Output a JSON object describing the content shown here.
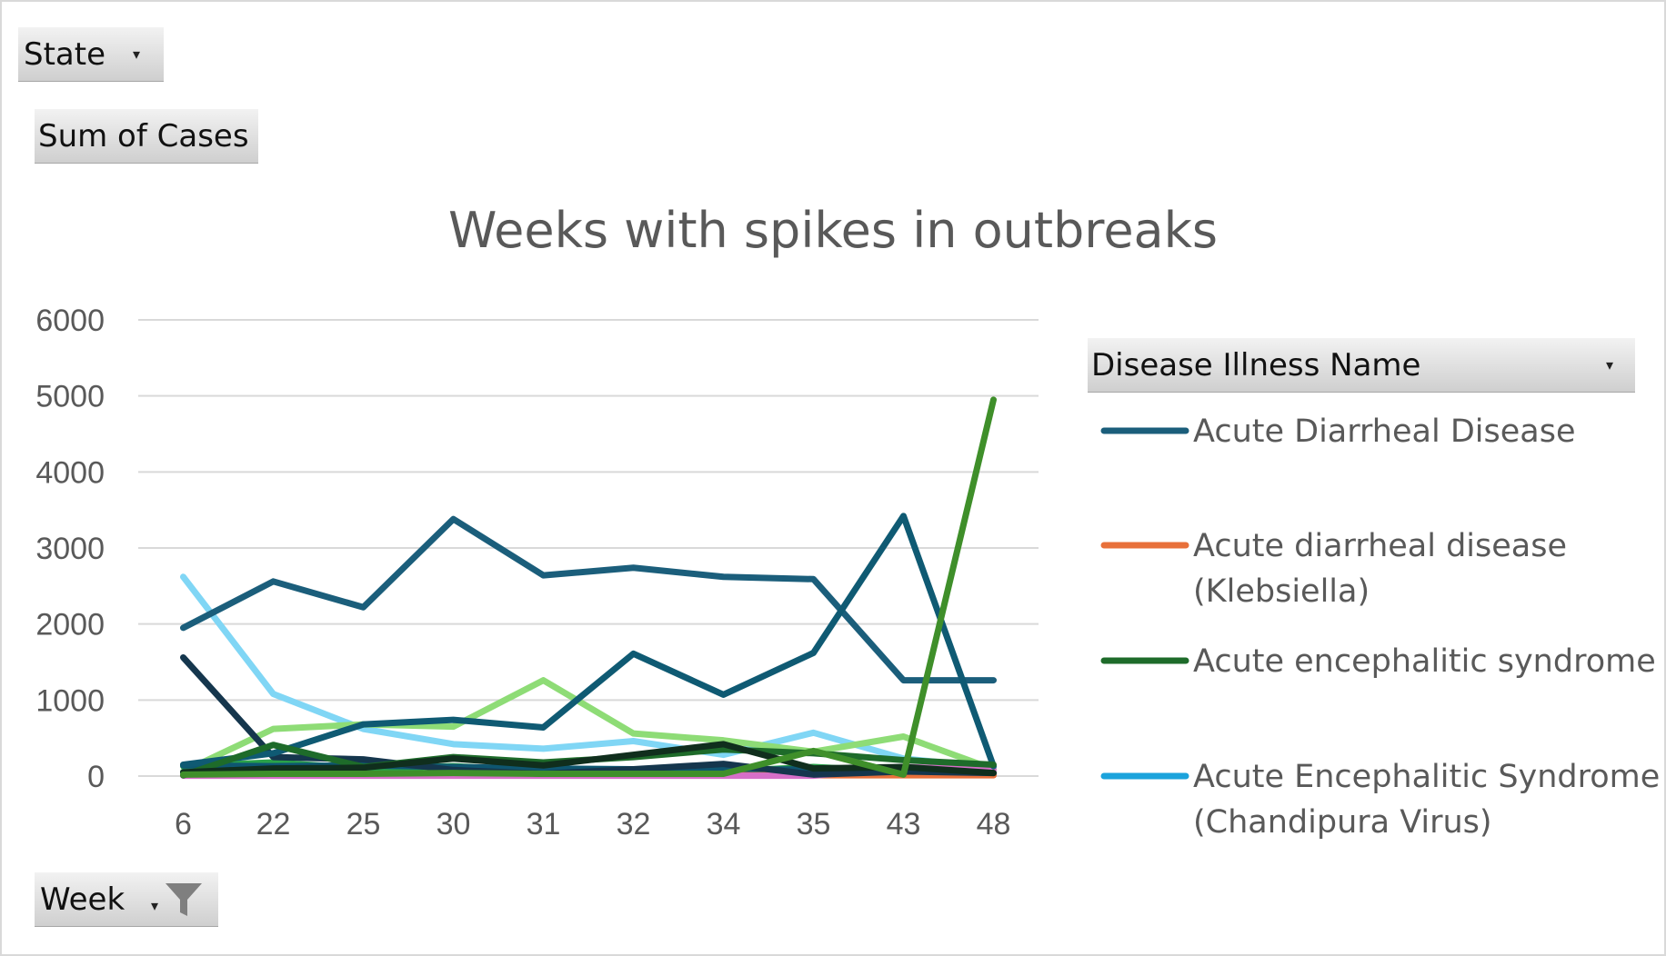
{
  "fields": {
    "state": "State",
    "values": "Sum of Cases",
    "axis": "Week",
    "legend": "Disease Illness Name"
  },
  "colors": {
    "acute_diarrheal": "#1b5e7b",
    "acute_diarrheal_klebsiella": "#e8703a",
    "acute_encephalitic": "#1e6b2a",
    "acute_encephalitic_chandipura": "#1ba3dc"
  },
  "chart_data": {
    "type": "line",
    "title": "Weeks with spikes in outbreaks",
    "xlabel": "",
    "ylabel": "",
    "categories": [
      "6",
      "22",
      "25",
      "30",
      "31",
      "32",
      "34",
      "35",
      "43",
      "48"
    ],
    "ylim": [
      0,
      6000
    ],
    "yticks": [
      0,
      1000,
      2000,
      3000,
      4000,
      5000,
      6000
    ],
    "grid": true,
    "legend_position": "right",
    "legend": [
      {
        "label": "Acute Diarrheal Disease",
        "color": "#1b5e7b"
      },
      {
        "label": "Acute diarrheal disease (Klebsiella)",
        "color": "#e8703a"
      },
      {
        "label": "Acute encephalitic syndrome",
        "color": "#1e6b2a"
      },
      {
        "label": "Acute Encephalitic Syndrome (Chandipura Virus)",
        "color": "#1ba3dc"
      }
    ],
    "series": [
      {
        "color": "#80d6f5",
        "values": [
          2620,
          1080,
          620,
          420,
          360,
          460,
          280,
          570,
          230,
          110
        ]
      },
      {
        "color": "#8edc76",
        "values": [
          60,
          620,
          680,
          650,
          1260,
          560,
          470,
          320,
          520,
          90
        ]
      },
      {
        "color": "#2aa24a",
        "values": [
          130,
          180,
          100,
          130,
          70,
          40,
          60,
          120,
          60,
          20
        ]
      },
      {
        "color": "#1ba3dc",
        "values": [
          50,
          40,
          30,
          20,
          20,
          20,
          20,
          20,
          40,
          20
        ]
      },
      {
        "color": "#0e5670",
        "values": [
          140,
          130,
          140,
          120,
          100,
          90,
          80,
          90,
          80,
          40
        ]
      },
      {
        "color": "#e8703a",
        "values": [
          10,
          10,
          10,
          10,
          10,
          10,
          10,
          10,
          10,
          10
        ]
      },
      {
        "color": "#d66fc8",
        "values": [
          5,
          5,
          5,
          5,
          5,
          5,
          5,
          5,
          120,
          80
        ]
      },
      {
        "color": "#15364d",
        "values": [
          1560,
          250,
          220,
          80,
          30,
          90,
          160,
          20,
          60,
          40
        ]
      },
      {
        "color": "#1b5e7b",
        "values": [
          1950,
          2560,
          2220,
          3380,
          2640,
          2740,
          2620,
          2590,
          1260,
          1260
        ]
      },
      {
        "color": "#0f5a73",
        "values": [
          150,
          300,
          680,
          740,
          640,
          1610,
          1070,
          1620,
          3420,
          130
        ]
      },
      {
        "color": "#1e6b2a",
        "values": [
          10,
          410,
          120,
          250,
          180,
          250,
          350,
          300,
          210,
          150
        ]
      },
      {
        "color": "#102e1d",
        "values": [
          50,
          100,
          110,
          230,
          140,
          280,
          420,
          100,
          120,
          40
        ]
      },
      {
        "color": "#3f8f2a",
        "values": [
          20,
          30,
          30,
          40,
          30,
          30,
          30,
          330,
          20,
          4950
        ]
      }
    ]
  }
}
